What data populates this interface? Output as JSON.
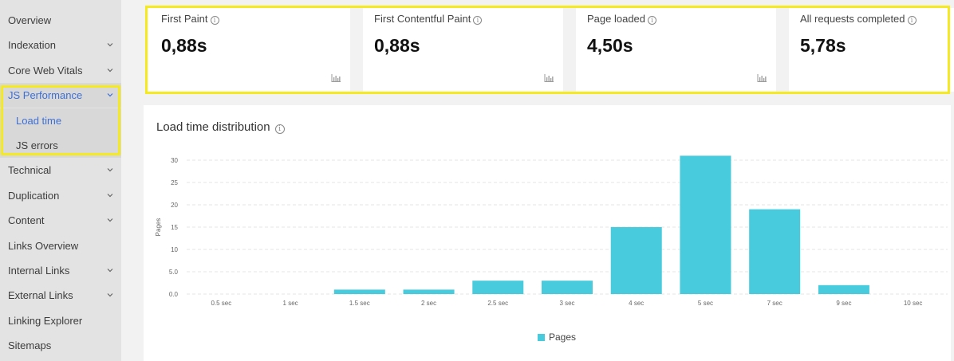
{
  "sidebar": {
    "items": [
      {
        "label": "Overview",
        "chevron": false
      },
      {
        "label": "Indexation",
        "chevron": true
      },
      {
        "label": "Core Web Vitals",
        "chevron": true
      },
      {
        "label": "JS Performance",
        "chevron": true,
        "active": true
      },
      {
        "label": "Load time",
        "chevron": false,
        "sub": true,
        "active": true
      },
      {
        "label": "JS errors",
        "chevron": false,
        "sub": true
      },
      {
        "label": "Technical",
        "chevron": true
      },
      {
        "label": "Duplication",
        "chevron": true
      },
      {
        "label": "Content",
        "chevron": true
      },
      {
        "label": "Links Overview",
        "chevron": false
      },
      {
        "label": "Internal Links",
        "chevron": true
      },
      {
        "label": "External Links",
        "chevron": true
      },
      {
        "label": "Linking Explorer",
        "chevron": false
      },
      {
        "label": "Sitemaps",
        "chevron": false
      }
    ]
  },
  "cards": [
    {
      "title": "First Paint",
      "value": "0,88s",
      "chart_icon": true
    },
    {
      "title": "First Contentful Paint",
      "value": "0,88s",
      "chart_icon": true
    },
    {
      "title": "Page loaded",
      "value": "4,50s",
      "chart_icon": true
    },
    {
      "title": "All requests completed",
      "value": "5,78s",
      "chart_icon": false
    }
  ],
  "panel": {
    "title": "Load time distribution"
  },
  "chart_data": {
    "type": "bar",
    "categories": [
      "0.5 sec",
      "1 sec",
      "1.5 sec",
      "2 sec",
      "2.5 sec",
      "3 sec",
      "4 sec",
      "5 sec",
      "7 sec",
      "9 sec",
      "10 sec"
    ],
    "series": [
      {
        "name": "Pages",
        "values": [
          0,
          0,
          1,
          1,
          3,
          3,
          15,
          31,
          19,
          2,
          0
        ]
      }
    ],
    "ylabel": "Pages",
    "xlabel": "",
    "ylim": [
      0,
      30
    ],
    "yticks": [
      "0.0",
      "5.0",
      "10",
      "15",
      "20",
      "25",
      "30"
    ],
    "grid": true,
    "legend": "bottom-center",
    "color": "#48cbdc"
  }
}
